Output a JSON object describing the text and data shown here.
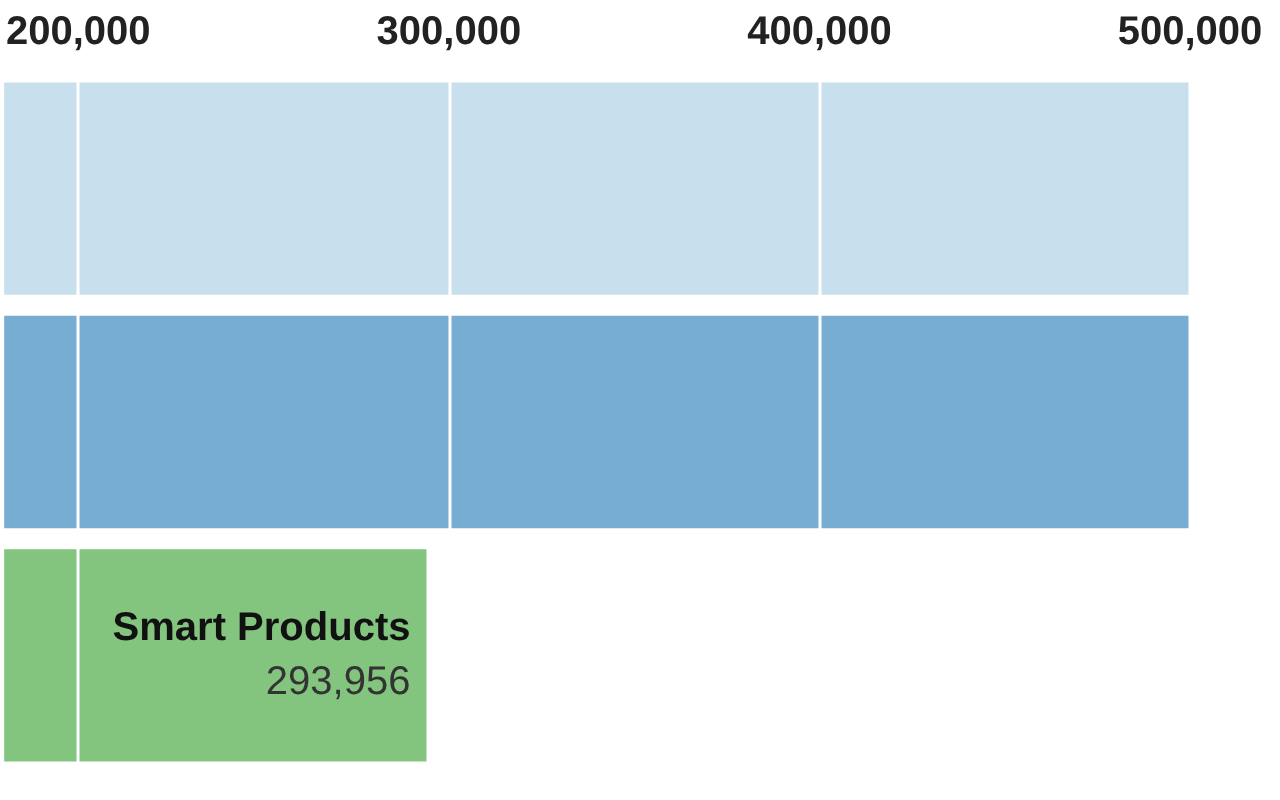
{
  "chart_data": {
    "type": "bar",
    "orientation": "horizontal",
    "categories": [
      null,
      null,
      "Smart Products"
    ],
    "values": [
      500000,
      500000,
      293956
    ],
    "colors": [
      "#c8dfee",
      "#77acd3",
      "#83c57e"
    ],
    "value_labels": [
      null,
      null,
      "293,956"
    ],
    "xlim": [
      180000,
      500000
    ],
    "xticks": [
      {
        "value": 200000,
        "label": "200,000"
      },
      {
        "value": 300000,
        "label": "300,000"
      },
      {
        "value": 400000,
        "label": "400,000"
      },
      {
        "value": 500000,
        "label": "500,000"
      }
    ],
    "grid": "x",
    "tick_labels": "x"
  }
}
